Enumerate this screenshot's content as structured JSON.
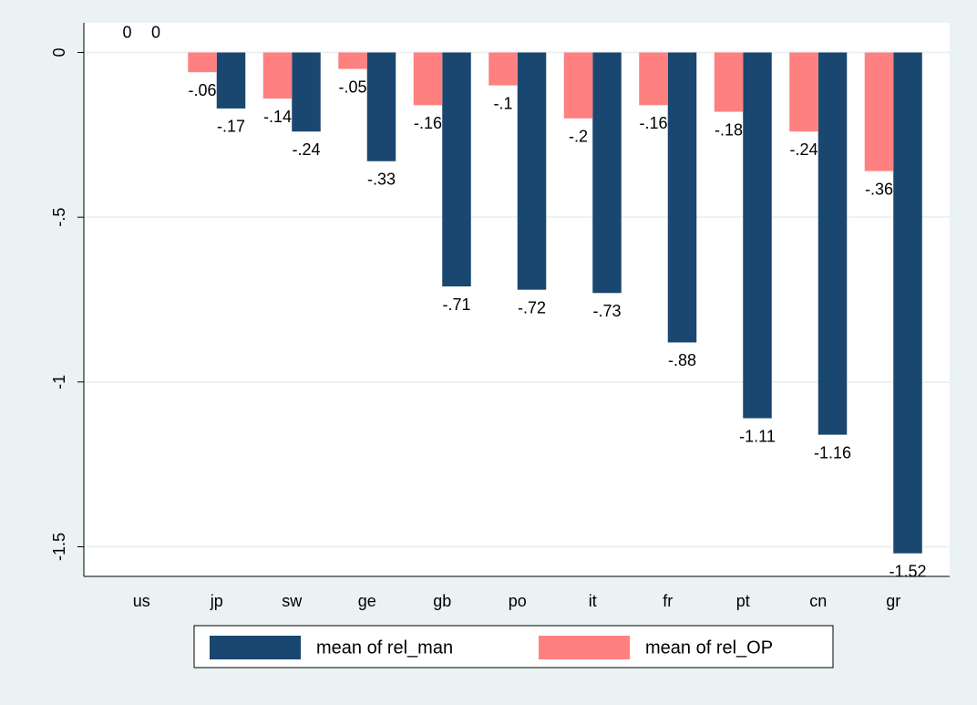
{
  "chart_data": {
    "type": "bar",
    "categories": [
      "us",
      "jp",
      "sw",
      "ge",
      "gb",
      "po",
      "it",
      "fr",
      "pt",
      "cn",
      "gr"
    ],
    "series": [
      {
        "name": "mean of rel_man",
        "color": "#1a476f",
        "values": [
          0,
          -0.17,
          -0.24,
          -0.33,
          -0.71,
          -0.72,
          -0.73,
          -0.88,
          -1.11,
          -1.16,
          -1.52
        ],
        "value_labels": [
          "0",
          "-.17",
          "-.24",
          "-.33",
          "-.71",
          "-.72",
          "-.73",
          "-.88",
          "-1.11",
          "-1.16",
          "-1.52"
        ]
      },
      {
        "name": "mean of rel_OP",
        "color": "#ff8080",
        "values": [
          0,
          -0.06,
          -0.14,
          -0.05,
          -0.16,
          -0.1,
          -0.2,
          -0.16,
          -0.18,
          -0.24,
          -0.36
        ],
        "value_labels": [
          "0",
          "-.06",
          "-.14",
          "-.05",
          "-.16",
          "-.1",
          "-.2",
          "-.16",
          "-.18",
          "-.24",
          "-.36"
        ]
      }
    ],
    "ylim": [
      -1.59,
      0.09
    ],
    "yticks": [
      0,
      {
        "value": -0.5,
        "label": "-.5"
      },
      -1,
      -1.5
    ],
    "grid": true,
    "legend": "bottom"
  }
}
